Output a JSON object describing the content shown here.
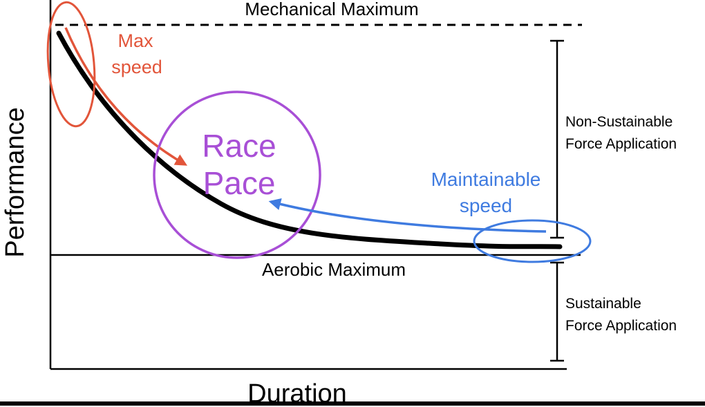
{
  "axes": {
    "y_label": "Performance",
    "x_label": "Duration"
  },
  "levels": {
    "top": "Mechanical Maximum",
    "bottom": "Aerobic Maximum"
  },
  "ranges": {
    "upper_line1": "Non-Sustainable",
    "upper_line2": "Force Application",
    "lower_line1": "Sustainable",
    "lower_line2": "Force Application"
  },
  "annotations": {
    "max_line1": "Max",
    "max_line2": "speed",
    "race_line1": "Race",
    "race_line2": "Pace",
    "maint_line1": "Maintainable",
    "maint_line2": "speed"
  },
  "colors": {
    "curve": "#000000",
    "max_speed": "#e2553a",
    "race_pace": "#a84fd6",
    "maintainable": "#3f7be0"
  }
}
